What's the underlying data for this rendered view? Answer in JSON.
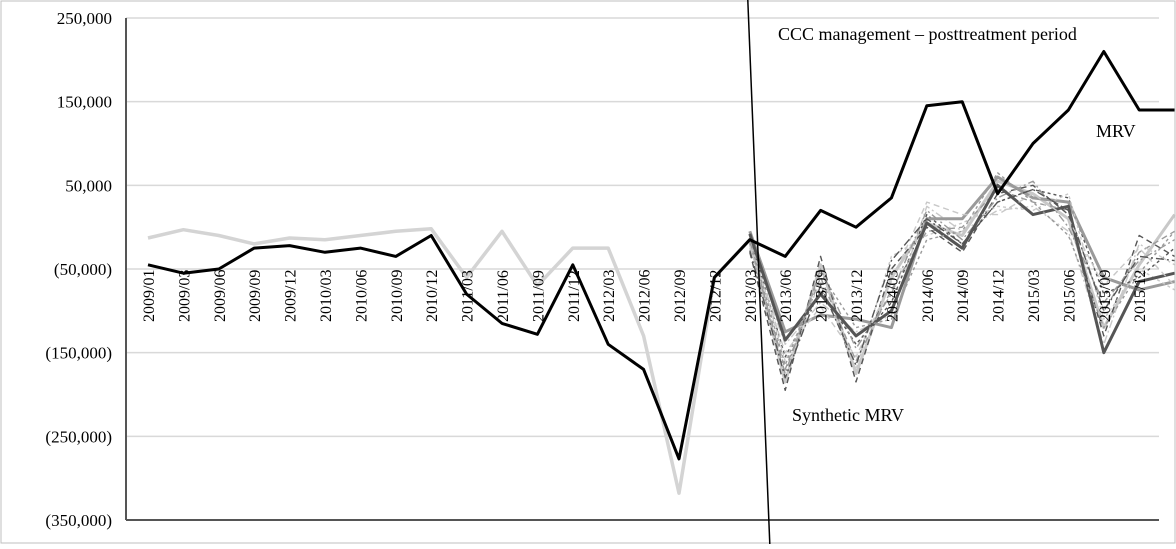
{
  "chart_data": {
    "type": "line",
    "title": "",
    "xlabel": "",
    "ylabel": "",
    "ylim": [
      -350000,
      250000
    ],
    "y_ticks": [
      250000,
      150000,
      50000,
      -50000,
      -150000,
      -250000,
      -350000
    ],
    "y_tick_labels": [
      "250,000",
      "150,000",
      "50,000",
      "(50,000)",
      "(150,000)",
      "(250,000)",
      "(350,000)"
    ],
    "grid": true,
    "x_labeled": [
      "2009/01",
      "2009/03",
      "2009/06",
      "2009/09",
      "2009/12",
      "2010/03",
      "2010/06",
      "2010/09",
      "2010/12",
      "2011/03",
      "2011/06",
      "2011/09",
      "2011/12",
      "2012/03",
      "2012/06",
      "2012/09",
      "2012/12",
      "2013/03",
      "2013/06",
      "2013/09",
      "2013/12",
      "2014/03",
      "2014/06",
      "2014/09",
      "2014/12",
      "2015/03",
      "2015/06",
      "2015/09",
      "2015/12"
    ],
    "treatment_start": "2013/03",
    "annotations": [
      {
        "text": "CCC management – posttreatment period"
      },
      {
        "text": "MRV"
      },
      {
        "text": "Synthetic MRV"
      }
    ],
    "colors": {
      "mrv": "#000000",
      "synthetic_pre": "#d4d4d4",
      "placebo_light": "#c8c8c8",
      "placebo_mid": "#9a9a9a",
      "placebo_dark": "#555555",
      "grid": "#d9d9d9"
    },
    "series": [
      {
        "name": "MRV",
        "x": [
          0,
          1,
          2,
          3,
          4,
          5,
          6,
          7,
          8,
          9,
          10,
          11,
          12,
          13,
          14,
          15,
          16,
          17,
          18,
          19,
          20,
          21,
          22,
          23,
          24,
          25,
          26,
          27,
          28,
          29
        ],
        "values": [
          -45000,
          -55000,
          -50000,
          -25000,
          -22000,
          -30000,
          -25000,
          -35000,
          -10000,
          -80000,
          -115000,
          -128000,
          -45000,
          -140000,
          -170000,
          -277000,
          -60000,
          -15000,
          -35000,
          20000,
          0,
          35000,
          145000,
          150000,
          40000,
          100000,
          140000,
          210000,
          140000,
          140000
        ]
      },
      {
        "name": "Synthetic MRV",
        "x": [
          0,
          1,
          2,
          3,
          4,
          5,
          6,
          7,
          8,
          9,
          10,
          11,
          12,
          13,
          14,
          15,
          16,
          17
        ],
        "values": [
          -13000,
          -3000,
          -10000,
          -20000,
          -13000,
          -15000,
          -10000,
          -5000,
          -2000,
          -60000,
          -5000,
          -70000,
          -25000,
          -25000,
          -130000,
          -318000,
          -60000,
          -15000
        ]
      }
    ],
    "placebo_series": [
      {
        "values": [
          -15000,
          -185000,
          -45000,
          -175000,
          -60000,
          5000,
          -10000,
          55000,
          40000,
          10000,
          -120000,
          -45000,
          15000
        ]
      },
      {
        "values": [
          -20000,
          -170000,
          -60000,
          -160000,
          -75000,
          -5000,
          0,
          45000,
          30000,
          20000,
          -100000,
          -30000,
          -5000
        ]
      },
      {
        "values": [
          -10000,
          -155000,
          -75000,
          -140000,
          -90000,
          15000,
          -20000,
          30000,
          45000,
          35000,
          -80000,
          -60000,
          -25000
        ]
      },
      {
        "values": [
          -25000,
          -140000,
          -90000,
          -125000,
          -105000,
          25000,
          -5000,
          20000,
          25000,
          -5000,
          -140000,
          -20000,
          -45000
        ]
      },
      {
        "values": [
          -5000,
          -125000,
          -105000,
          -110000,
          -120000,
          10000,
          10000,
          60000,
          35000,
          30000,
          -60000,
          -75000,
          -65000
        ]
      },
      {
        "values": [
          -30000,
          -195000,
          -35000,
          -185000,
          -50000,
          0,
          -30000,
          40000,
          50000,
          15000,
          -130000,
          -10000,
          -35000
        ]
      },
      {
        "values": [
          -12000,
          -160000,
          -65000,
          -170000,
          -35000,
          -10000,
          5000,
          25000,
          20000,
          40000,
          -110000,
          -50000,
          -75000
        ]
      },
      {
        "values": [
          -18000,
          -175000,
          -50000,
          -145000,
          -80000,
          20000,
          -15000,
          35000,
          55000,
          0,
          -90000,
          -40000,
          -15000
        ]
      },
      {
        "values": [
          -8000,
          -135000,
          -80000,
          -130000,
          -100000,
          5000,
          -25000,
          50000,
          15000,
          25000,
          -150000,
          -65000,
          -55000
        ]
      },
      {
        "values": [
          -22000,
          -150000,
          -95000,
          -155000,
          -65000,
          30000,
          15000,
          15000,
          40000,
          10000,
          -70000,
          -25000,
          -70000
        ]
      },
      {
        "values": [
          -15000,
          -165000,
          -55000,
          -120000,
          -110000,
          -15000,
          -5000,
          65000,
          30000,
          -10000,
          -120000,
          -55000,
          -5000
        ]
      },
      {
        "values": [
          -28000,
          -180000,
          -70000,
          -165000,
          -40000,
          10000,
          -20000,
          30000,
          45000,
          20000,
          -100000,
          -35000,
          -40000
        ]
      }
    ]
  }
}
